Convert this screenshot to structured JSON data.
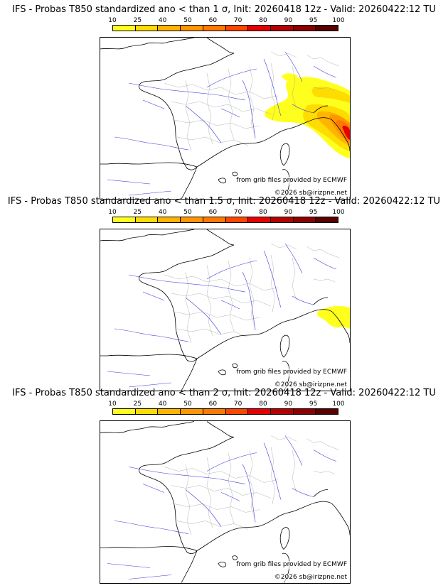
{
  "colorbar": {
    "ticks": [
      "10",
      "25",
      "40",
      "50",
      "60",
      "70",
      "80",
      "90",
      "95",
      "100"
    ],
    "colors": [
      "#ffff1e",
      "#ffdc00",
      "#ffb400",
      "#ff9600",
      "#ff7800",
      "#ff4600",
      "#e60000",
      "#b40000",
      "#8c0000",
      "#5a0000"
    ]
  },
  "panels": [
    {
      "title": "IFS - Probas T850  standardized ano < than 1 σ, Init: 20260418 12z - Valid: 20260422:12 TU",
      "source": "from grib files provided by ECMWF",
      "copyright": "©2026 sb@irizpne.net"
    },
    {
      "title": "IFS - Probas T850  standardized ano < than 1.5 σ, Init: 20260418 12z - Valid: 20260422:12 TU",
      "source": "from grib files provided by ECMWF",
      "copyright": "©2026 sb@irizpne.net"
    },
    {
      "title": "IFS - Probas T850  standardized ano < than 2 σ, Init: 20260418 12z - Valid: 20260422:12 TU",
      "source": "from grib files provided by ECMWF",
      "copyright": "©2026 sb@irizpne.net"
    }
  ],
  "style": {
    "coast_color": "#000000",
    "river_color": "#3c3cdc",
    "border_color": "#a0a0a0"
  }
}
